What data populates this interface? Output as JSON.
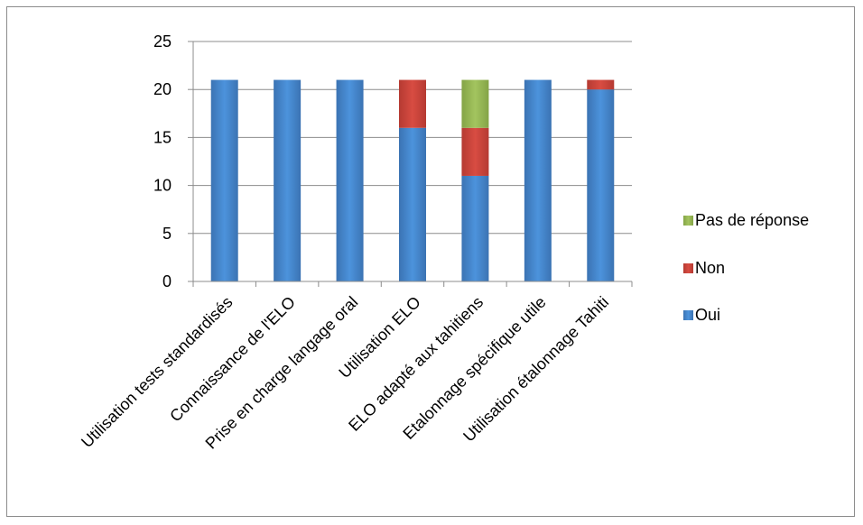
{
  "chart_data": {
    "type": "bar",
    "stacked": true,
    "categories": [
      "Utilisation tests standardisés",
      "Connaissance de l'ELO",
      "Prise en charge langage oral",
      "Utilisation ELO",
      "ELO adapté aux tahitiens",
      "Etalonnage spécifique utile",
      "Utilisation étalonnage Tahiti"
    ],
    "series": [
      {
        "name": "Oui",
        "color": "#4a8fd6",
        "values": [
          21,
          21,
          21,
          16,
          11,
          21,
          20
        ]
      },
      {
        "name": "Non",
        "color": "#d2493f",
        "values": [
          0,
          0,
          0,
          5,
          5,
          0,
          1
        ]
      },
      {
        "name": "Pas de réponse",
        "color": "#9bbb59",
        "values": [
          0,
          0,
          0,
          0,
          5,
          0,
          0
        ]
      }
    ],
    "ylim": [
      0,
      25
    ],
    "yticks": [
      0,
      5,
      10,
      15,
      20,
      25
    ],
    "grid": true,
    "legend_position": "right",
    "legend_order": [
      "Pas de réponse",
      "Non",
      "Oui"
    ],
    "title": "",
    "xlabel": "",
    "ylabel": ""
  }
}
